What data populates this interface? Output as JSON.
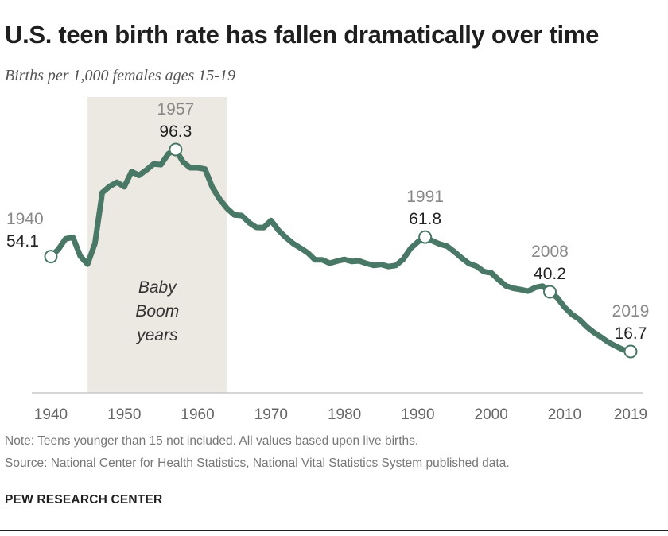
{
  "header": {
    "title": "U.S. teen birth rate has fallen dramatically over time",
    "subtitle": "Births per 1,000 females ages 15-19"
  },
  "footer": {
    "note": "Note: Teens younger than 15 not included. All values based upon live births.",
    "source": "Source: National Center for Health Statistics, National Vital Statistics System published data.",
    "brand": "PEW RESEARCH CENTER"
  },
  "colors": {
    "line": "#4a7866",
    "shade": "#ece9e2",
    "axis": "#c8c8c8",
    "marker_fill": "#ffffff",
    "year_label": "#888888",
    "value_label": "#222222"
  },
  "chart_data": {
    "type": "line",
    "title": "U.S. teen birth rate has fallen dramatically over time",
    "ylabel": "Births per 1,000 females ages 15-19",
    "xlabel": "",
    "xlim": [
      1939,
      2021
    ],
    "ylim": [
      0,
      110
    ],
    "xticks": [
      "1940",
      "1950",
      "1960",
      "1970",
      "1980",
      "1990",
      "2000",
      "2010",
      "2019"
    ],
    "grid": false,
    "series": [
      {
        "x": [
          1940,
          1941,
          1942,
          1943,
          1944,
          1945,
          1946,
          1947,
          1948,
          1949,
          1950,
          1951,
          1952,
          1953,
          1954,
          1955,
          1956,
          1957,
          1958,
          1959,
          1960,
          1961,
          1962,
          1963,
          1964,
          1965,
          1966,
          1967,
          1968,
          1969,
          1970,
          1971,
          1972,
          1973,
          1974,
          1975,
          1976,
          1977,
          1978,
          1979,
          1980,
          1981,
          1982,
          1983,
          1984,
          1985,
          1986,
          1987,
          1988,
          1989,
          1990,
          1991,
          1992,
          1993,
          1994,
          1995,
          1996,
          1997,
          1998,
          1999,
          2000,
          2001,
          2002,
          2003,
          2004,
          2005,
          2006,
          2007,
          2008,
          2009,
          2010,
          2011,
          2012,
          2013,
          2014,
          2015,
          2016,
          2017,
          2018,
          2019
        ],
        "values": [
          54.1,
          56.9,
          61.1,
          61.7,
          54.3,
          51.1,
          59.3,
          79.3,
          81.8,
          83.4,
          81.6,
          87.6,
          86.1,
          88.2,
          90.6,
          90.3,
          94.6,
          96.3,
          91.4,
          89.1,
          89.1,
          88.6,
          81.4,
          76.7,
          73.1,
          70.5,
          70.3,
          67.5,
          65.6,
          65.5,
          68.3,
          64.5,
          61.7,
          59.3,
          57.5,
          55.6,
          52.8,
          52.8,
          51.5,
          52.3,
          53.0,
          52.2,
          52.4,
          51.4,
          50.6,
          51.0,
          50.2,
          50.6,
          53.0,
          57.3,
          59.9,
          61.8,
          60.3,
          59.0,
          58.2,
          56.0,
          53.5,
          51.3,
          50.3,
          48.2,
          47.7,
          45.0,
          42.6,
          41.6,
          41.1,
          40.5,
          41.9,
          42.5,
          40.2,
          37.9,
          34.2,
          31.3,
          29.4,
          26.5,
          24.2,
          22.3,
          20.3,
          18.8,
          17.4,
          16.7
        ]
      }
    ],
    "shaded_region": {
      "x": [
        1945,
        1964
      ],
      "label": [
        "Baby",
        "Boom",
        "years"
      ]
    },
    "annotations": [
      {
        "x": 1940,
        "year": "1940",
        "value": "54.1",
        "pos": "left"
      },
      {
        "x": 1957,
        "year": "1957",
        "value": "96.3",
        "pos": "above"
      },
      {
        "x": 1991,
        "year": "1991",
        "value": "61.8",
        "pos": "above"
      },
      {
        "x": 2008,
        "year": "2008",
        "value": "40.2",
        "pos": "above"
      },
      {
        "x": 2019,
        "year": "2019",
        "value": "16.7",
        "pos": "above"
      }
    ]
  }
}
